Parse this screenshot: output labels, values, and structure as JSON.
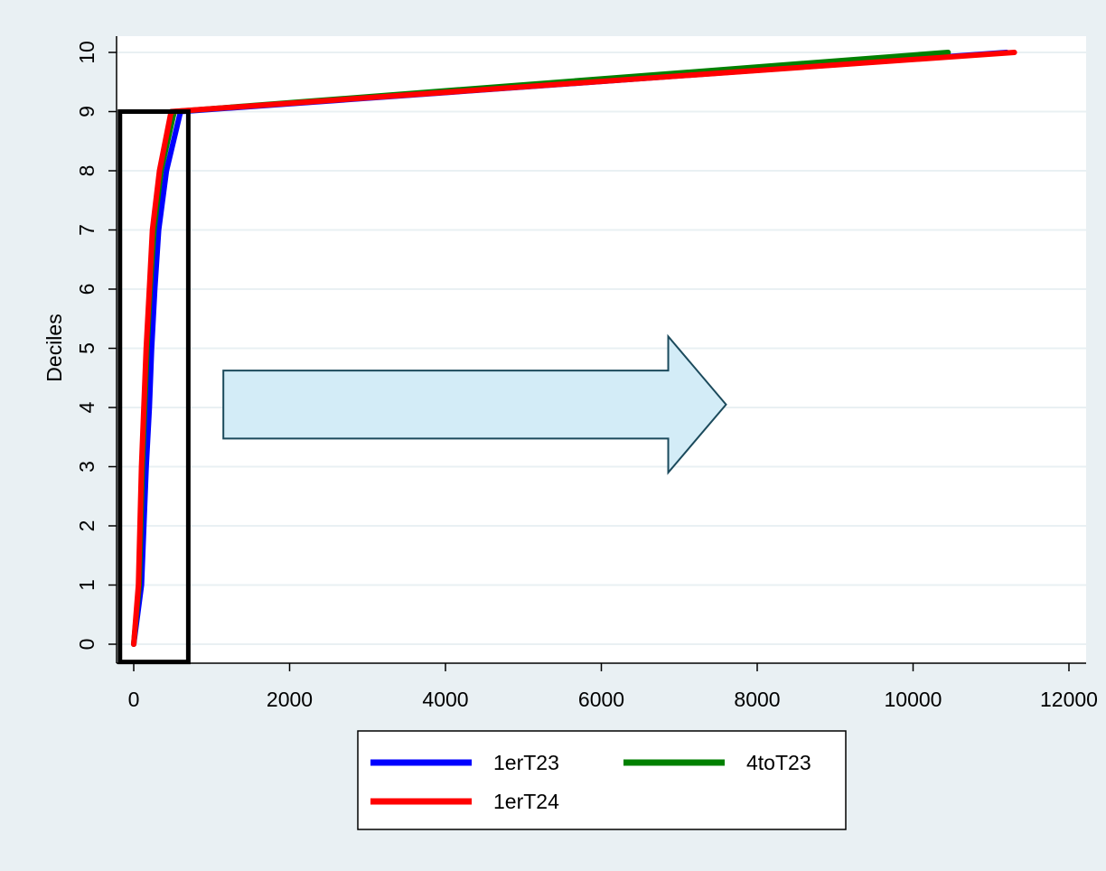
{
  "chart_data": {
    "type": "line",
    "title": "",
    "xlabel": "",
    "ylabel": "Deciles",
    "xlim": [
      -200,
      12000
    ],
    "ylim": [
      0,
      10
    ],
    "xticks": [
      0,
      2000,
      4000,
      6000,
      8000,
      10000,
      12000
    ],
    "yticks": [
      0,
      1,
      2,
      3,
      4,
      5,
      6,
      7,
      8,
      9,
      10
    ],
    "grid": "horizontal",
    "legend_position": "bottom",
    "colors": {
      "background": "#e9f0f3",
      "plot_area": "#ffffff",
      "gridline": "#e9f0f3",
      "arrow_fill": "#d3ecf7",
      "arrow_stroke": "#1b4a5c",
      "highlight_box": "#000000"
    },
    "series": [
      {
        "name": "1erT23",
        "color": "#0000ff",
        "x": [
          0,
          100,
          160,
          200,
          230,
          270,
          320,
          420,
          600,
          11200
        ],
        "y": [
          0,
          1,
          3,
          4,
          5,
          6,
          7,
          8,
          9,
          10
        ]
      },
      {
        "name": "4toT23",
        "color": "#008000",
        "x": [
          0,
          70,
          110,
          140,
          170,
          210,
          260,
          350,
          520,
          10450
        ],
        "y": [
          0,
          1,
          3,
          4,
          5,
          6,
          7,
          8,
          9,
          10
        ]
      },
      {
        "name": "1erT24",
        "color": "#ff0000",
        "x": [
          0,
          60,
          100,
          130,
          160,
          200,
          240,
          330,
          480,
          11300
        ],
        "y": [
          0,
          1,
          3,
          4,
          5,
          6,
          7,
          8,
          9,
          10
        ]
      }
    ],
    "annotations": [
      {
        "type": "rectangle",
        "x_range": [
          -200,
          700
        ],
        "y_range": [
          -0.3,
          9
        ],
        "meaning": "highlight"
      },
      {
        "type": "arrow",
        "direction": "right",
        "x_range": [
          1150,
          7600
        ],
        "y_range": [
          2.9,
          5.2
        ]
      }
    ]
  }
}
